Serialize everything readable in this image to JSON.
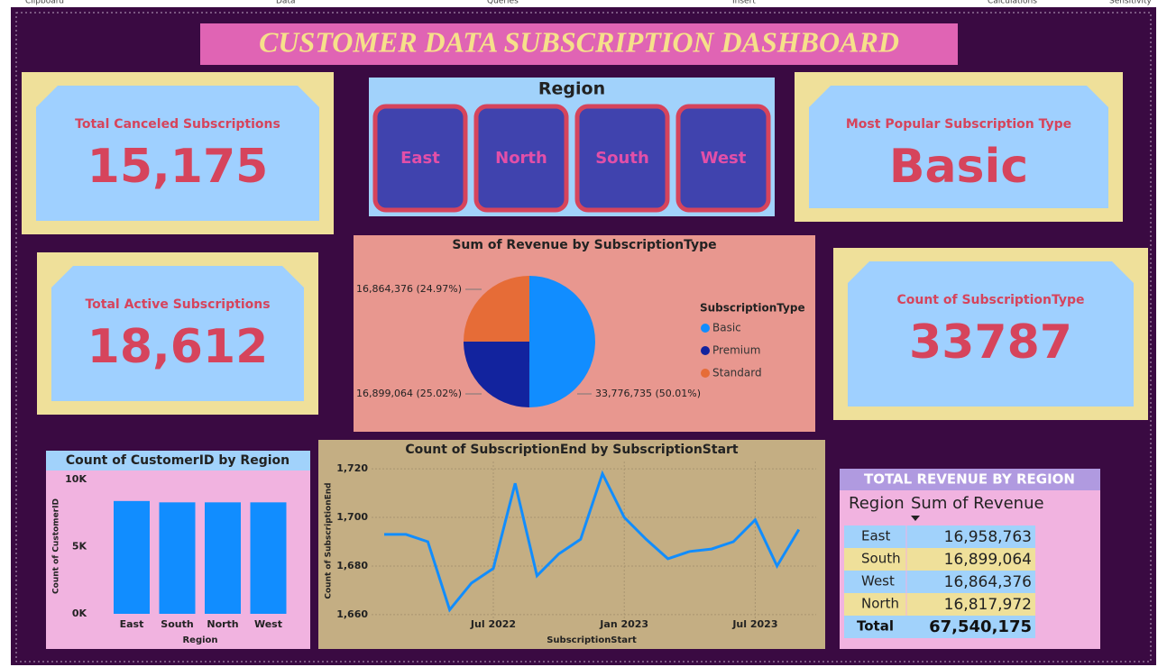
{
  "ribbon": [
    "Clipboard",
    "Data",
    "Queries",
    "Insert",
    "Calculations",
    "Sensitivity"
  ],
  "header": {
    "title": "CUSTOMER DATA SUBSCRIPTION DASHBOARD"
  },
  "cards": [
    {
      "label": "Total Canceled Subscriptions",
      "value": "15,175"
    },
    {
      "label": "Total Active Subscriptions",
      "value": "18,612"
    },
    {
      "label": "Most Popular Subscription Type",
      "value": "Basic"
    },
    {
      "label": "Count of SubscriptionType",
      "value": "33787"
    }
  ],
  "slicer": {
    "title": "Region",
    "options": [
      "East",
      "North",
      "South",
      "West"
    ]
  },
  "chart_data": [
    {
      "type": "pie",
      "title": "Sum of Revenue by SubscriptionType",
      "legend_title": "SubscriptionType",
      "categories": [
        "Basic",
        "Premium",
        "Standard"
      ],
      "values": [
        33776735,
        16899064,
        16864376
      ],
      "value_labels": [
        "33,776,735 (50.01%)",
        "16,899,064 (25.02%)",
        "16,864,376 (24.97%)"
      ],
      "colors": [
        "#118dff",
        "#12239e",
        "#e66c37"
      ]
    },
    {
      "type": "bar",
      "title": "Count of CustomerID by Region",
      "x_label": "Region",
      "y_label": "Count of CustomerID",
      "categories": [
        "East",
        "South",
        "North",
        "West"
      ],
      "values": [
        8400,
        8300,
        8300,
        8300
      ],
      "color": "#118dff",
      "ylim": [
        0,
        10000
      ],
      "yticks": [
        {
          "value": 0,
          "label": "0K"
        },
        {
          "value": 5000,
          "label": "5K"
        },
        {
          "value": 10000,
          "label": "10K"
        }
      ]
    },
    {
      "type": "line",
      "title": "Count of SubscriptionEnd by SubscriptionStart",
      "x_label": "SubscriptionStart",
      "y_label": "Count of SubscriptionEnd",
      "x": [
        "2022-02",
        "2022-03",
        "2022-04",
        "2022-05",
        "2022-06",
        "2022-07",
        "2022-08",
        "2022-09",
        "2022-10",
        "2022-11",
        "2022-12",
        "2023-01",
        "2023-02",
        "2023-03",
        "2023-04",
        "2023-05",
        "2023-06",
        "2023-07",
        "2023-08",
        "2023-09"
      ],
      "series": [
        {
          "name": "Count of SubscriptionEnd",
          "color": "#118dff",
          "values": [
            1693,
            1693,
            1690,
            1662,
            1673,
            1679,
            1714,
            1676,
            1685,
            1691,
            1718,
            1700,
            1691,
            1683,
            1686,
            1687,
            1690,
            1699,
            1680,
            1695
          ]
        }
      ],
      "xticks": [
        {
          "value": "2022-07",
          "label": "Jul 2022"
        },
        {
          "value": "2023-01",
          "label": "Jan 2023"
        },
        {
          "value": "2023-07",
          "label": "Jul 2023"
        }
      ],
      "ylim": [
        1657,
        1723
      ],
      "yticks": [
        {
          "value": 1660,
          "label": "1,660"
        },
        {
          "value": 1680,
          "label": "1,680"
        },
        {
          "value": 1700,
          "label": "1,700"
        },
        {
          "value": 1720,
          "label": "1,720"
        }
      ],
      "grid": true
    }
  ],
  "table": {
    "title": "TOTAL REVENUE BY REGION",
    "columns": [
      "Region",
      "Sum of Revenue"
    ],
    "rows": [
      [
        "East",
        "16,958,763"
      ],
      [
        "South",
        "16,899,064"
      ],
      [
        "West",
        "16,864,376"
      ],
      [
        "North",
        "16,817,972"
      ]
    ],
    "total": [
      "Total",
      "67,540,175"
    ]
  }
}
